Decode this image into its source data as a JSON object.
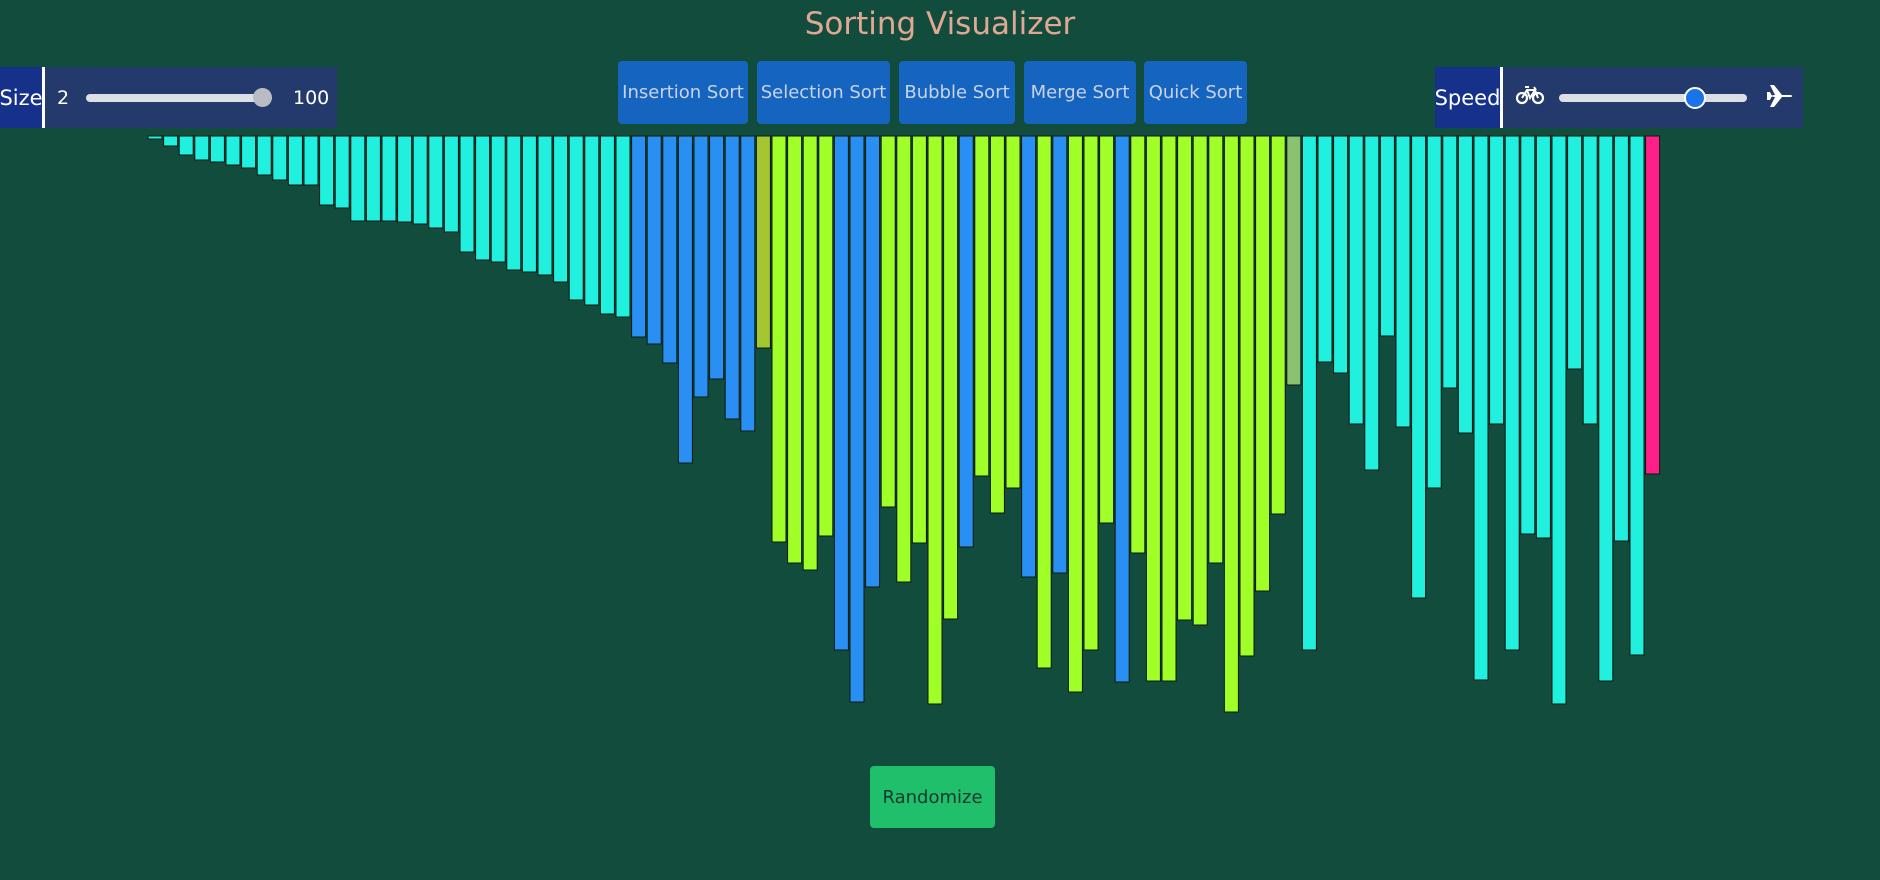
{
  "app": {
    "title": "Sorting Visualizer"
  },
  "size_control": {
    "label": "Size",
    "min_label": "2",
    "max_label": "100",
    "value_fraction": 1.0
  },
  "speed_control": {
    "label": "Speed",
    "slow_icon": "bicycle-icon",
    "fast_icon": "airplane-icon",
    "value_fraction": 0.75
  },
  "algorithms": [
    "Insertion Sort",
    "Selection Sort",
    "Bubble Sort",
    "Merge Sort",
    "Quick Sort"
  ],
  "randomize_label": "Randomize",
  "colors": {
    "background": "#124c3c",
    "sorted": "#22f0df",
    "comparing": "#2a8ff2",
    "unsorted": "#a0ff27",
    "pivot": "#a4c630",
    "previous": "#8ac370",
    "current": "#ff1f88"
  },
  "bars": {
    "heights": [
      3,
      10,
      19,
      24,
      26,
      29,
      32,
      39,
      44,
      49,
      49,
      69,
      72,
      85,
      85,
      85,
      86,
      88,
      92,
      96,
      116,
      124,
      126,
      134,
      136,
      139,
      146,
      164,
      169,
      178,
      181,
      201,
      208,
      227,
      327,
      261,
      243,
      283,
      295,
      212,
      406,
      427,
      434,
      400,
      514,
      566,
      451,
      371,
      446,
      407,
      568,
      483,
      411,
      340,
      377,
      352,
      441,
      532,
      437,
      556,
      514,
      387,
      546,
      417,
      545,
      545,
      484,
      489,
      427,
      576,
      520,
      455,
      378,
      249,
      514,
      226,
      237,
      288,
      334,
      200,
      291,
      462,
      352,
      252,
      297,
      544,
      288,
      514,
      398,
      402,
      568,
      233,
      288,
      545,
      405,
      519,
      338
    ],
    "states": [
      "s",
      "s",
      "s",
      "s",
      "s",
      "s",
      "s",
      "s",
      "s",
      "s",
      "s",
      "s",
      "s",
      "s",
      "s",
      "s",
      "s",
      "s",
      "s",
      "s",
      "s",
      "s",
      "s",
      "s",
      "s",
      "s",
      "s",
      "s",
      "s",
      "s",
      "s",
      "c",
      "c",
      "c",
      "c",
      "c",
      "c",
      "c",
      "c",
      "p",
      "u",
      "u",
      "u",
      "u",
      "c",
      "c",
      "c",
      "u",
      "u",
      "u",
      "u",
      "u",
      "c",
      "u",
      "u",
      "u",
      "c",
      "u",
      "c",
      "u",
      "u",
      "u",
      "c",
      "u",
      "u",
      "u",
      "u",
      "u",
      "u",
      "u",
      "u",
      "u",
      "u",
      "o",
      "s",
      "s",
      "s",
      "s",
      "s",
      "s",
      "s",
      "s",
      "s",
      "s",
      "s",
      "s",
      "s",
      "s",
      "s",
      "s",
      "s",
      "s",
      "s",
      "s",
      "s",
      "s",
      "x"
    ]
  }
}
